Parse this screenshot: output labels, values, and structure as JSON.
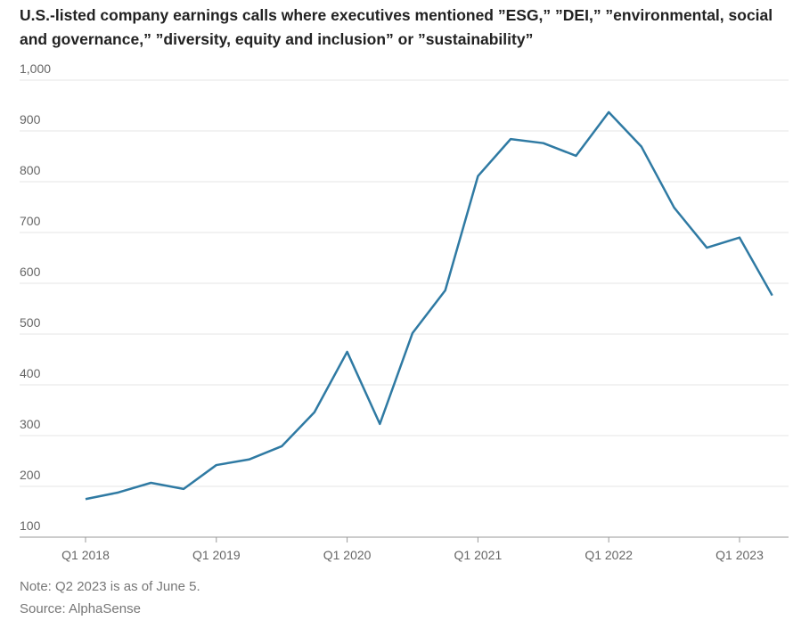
{
  "chart_data": {
    "type": "line",
    "title": "U.S.-listed company earnings calls where executives mentioned ”ESG,” ”DEI,” ”environmental, social and governance,” ”diversity, equity and inclusion” or ”sustainability”",
    "categories": [
      "Q1 2018",
      null,
      null,
      null,
      "Q1 2019",
      null,
      null,
      null,
      "Q1 2020",
      null,
      null,
      null,
      "Q1 2021",
      null,
      null,
      null,
      "Q1 2022",
      null,
      null,
      null,
      "Q1 2023",
      null
    ],
    "series": [
      {
        "name": "Earnings calls",
        "color": "#2f7aa3",
        "values": [
          175,
          188,
          207,
          195,
          242,
          253,
          279,
          346,
          465,
          323,
          502,
          586,
          811,
          884,
          876,
          851,
          937,
          869,
          749,
          670,
          690,
          576
        ]
      }
    ],
    "ylim": [
      100,
      1000
    ],
    "yticks": [
      100,
      200,
      300,
      400,
      500,
      600,
      700,
      800,
      900,
      {
        "value": 1000,
        "label": "1,000"
      }
    ],
    "grid": true,
    "note": "Note: Q2 2023 is as of June 5.",
    "source": "Source: AlphaSense"
  }
}
